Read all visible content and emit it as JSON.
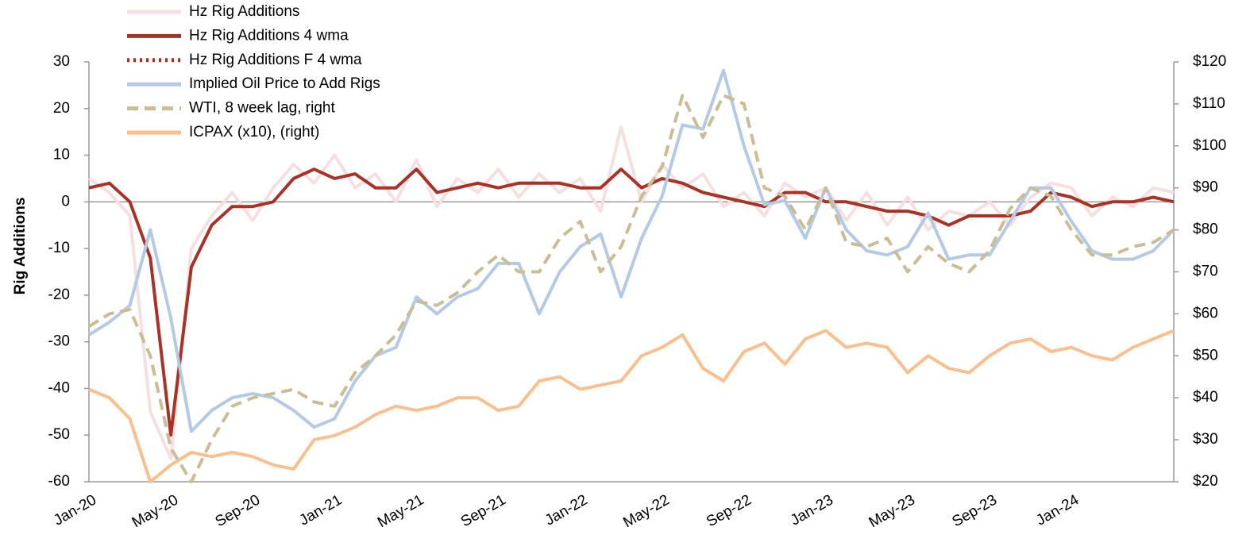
{
  "chart_data": {
    "type": "line",
    "y_label": "Rig Additions",
    "x": [
      "Jan-20",
      null,
      null,
      null,
      "May-20",
      null,
      null,
      null,
      "Sep-20",
      null,
      null,
      null,
      "Jan-21",
      null,
      null,
      null,
      "May-21",
      null,
      null,
      null,
      "Sep-21",
      null,
      null,
      null,
      "Jan-22",
      null,
      null,
      null,
      "May-22",
      null,
      null,
      null,
      "Sep-22",
      null,
      null,
      null,
      "Jan-23",
      null,
      null,
      null,
      "May-23",
      null,
      null,
      null,
      "Sep-23",
      null,
      null,
      null,
      "Jan-24",
      null,
      null,
      null,
      null,
      null
    ],
    "ylim": [
      -60,
      30
    ],
    "yticks": [
      -60,
      -50,
      -40,
      -30,
      -20,
      -10,
      0,
      10,
      20,
      30
    ],
    "y2lim": [
      20,
      120
    ],
    "y2ticks": [
      {
        "value": 20,
        "label": "$20"
      },
      {
        "value": 30,
        "label": "$30"
      },
      {
        "value": 40,
        "label": "$40"
      },
      {
        "value": 50,
        "label": "$50"
      },
      {
        "value": 60,
        "label": "$60"
      },
      {
        "value": 70,
        "label": "$70"
      },
      {
        "value": 80,
        "label": "$80"
      },
      {
        "value": 90,
        "label": "$90"
      },
      {
        "value": 100,
        "label": "$100"
      },
      {
        "value": 110,
        "label": "$110"
      },
      {
        "value": 120,
        "label": "$120"
      }
    ],
    "legend": "top-left",
    "series": [
      {
        "name": "Hz Rig Additions",
        "color": "#f6dfe0",
        "style": "solid",
        "values": [
          5,
          2,
          -3,
          -45,
          -55,
          -10,
          -3,
          2,
          -4,
          3,
          8,
          4,
          10,
          3,
          6,
          0,
          9,
          -1,
          5,
          2,
          7,
          1,
          6,
          2,
          5,
          -2,
          16,
          0,
          8,
          3,
          6,
          -1,
          2,
          -3,
          4,
          1,
          3,
          -4,
          2,
          -5,
          1,
          -6,
          -2,
          -3,
          0,
          -5,
          1,
          4,
          3,
          -3,
          1,
          -1,
          3,
          2
        ]
      },
      {
        "name": "Hz Rig Additions 4 wma",
        "color": "#a93226",
        "style": "solid",
        "values": [
          3,
          4,
          0,
          -12,
          -50,
          -14,
          -5,
          -1,
          -1,
          0,
          5,
          7,
          5,
          6,
          3,
          3,
          7,
          2,
          3,
          4,
          3,
          4,
          4,
          4,
          3,
          3,
          7,
          3,
          5,
          4,
          2,
          1,
          0,
          -1,
          2,
          2,
          0,
          0,
          -1,
          -2,
          -2,
          -3,
          -5,
          -3,
          -3,
          -3,
          -2,
          2,
          1,
          -1,
          0,
          0,
          1,
          0
        ]
      },
      {
        "name": "Hz Rig Additions F  4 wma",
        "color": "#a93226",
        "style": "dotted",
        "values": [
          null,
          null,
          null,
          null,
          null,
          null,
          null,
          null,
          null,
          null,
          null,
          null,
          null,
          null,
          null,
          null,
          null,
          null,
          null,
          null,
          null,
          null,
          null,
          null,
          null,
          null,
          null,
          null,
          null,
          null,
          null,
          null,
          null,
          null,
          null,
          null,
          null,
          null,
          null,
          null,
          null,
          null,
          null,
          null,
          null,
          null,
          null,
          null,
          null,
          null,
          null,
          null,
          null,
          null
        ]
      },
      {
        "name": "Implied Oil Price to Add Rigs",
        "color": "#b4c9e3",
        "style": "solid",
        "axis": "y2",
        "values": [
          55,
          58,
          62,
          80,
          59,
          32,
          37,
          40,
          41,
          40,
          37,
          33,
          35,
          44,
          50,
          52,
          64,
          60,
          64,
          66,
          72,
          72,
          60,
          70,
          76,
          79,
          64,
          78,
          88,
          105,
          104,
          118,
          100,
          86,
          87,
          78,
          90,
          80,
          75,
          74,
          76,
          84,
          73,
          74,
          74,
          82,
          90,
          90,
          82,
          75,
          73,
          73,
          75,
          80
        ]
      },
      {
        "name": "WTI, 8 week lag, right",
        "color": "#c8bd94",
        "style": "dashed",
        "axis": "y2",
        "values": [
          57,
          60,
          61,
          50,
          28,
          20,
          30,
          38,
          40,
          41,
          42,
          39,
          38,
          46,
          50,
          55,
          63,
          62,
          65,
          70,
          74,
          70,
          70,
          78,
          82,
          70,
          76,
          88,
          95,
          112,
          102,
          112,
          110,
          90,
          88,
          80,
          90,
          77,
          76,
          78,
          70,
          76,
          72,
          70,
          75,
          85,
          90,
          88,
          80,
          74,
          74,
          76,
          77,
          80
        ]
      },
      {
        "name": "ICPAX (x10), (right)",
        "color": "#fbbf8d",
        "style": "solid",
        "axis": "y2",
        "values": [
          42,
          40,
          35,
          20,
          24,
          27,
          26,
          27,
          26,
          24,
          23,
          30,
          31,
          33,
          36,
          38,
          37,
          38,
          40,
          40,
          37,
          38,
          44,
          45,
          42,
          43,
          44,
          50,
          52,
          55,
          47,
          44,
          51,
          53,
          48,
          54,
          56,
          52,
          53,
          52,
          46,
          50,
          47,
          46,
          50,
          53,
          54,
          51,
          52,
          50,
          49,
          52,
          54,
          56
        ]
      }
    ]
  }
}
